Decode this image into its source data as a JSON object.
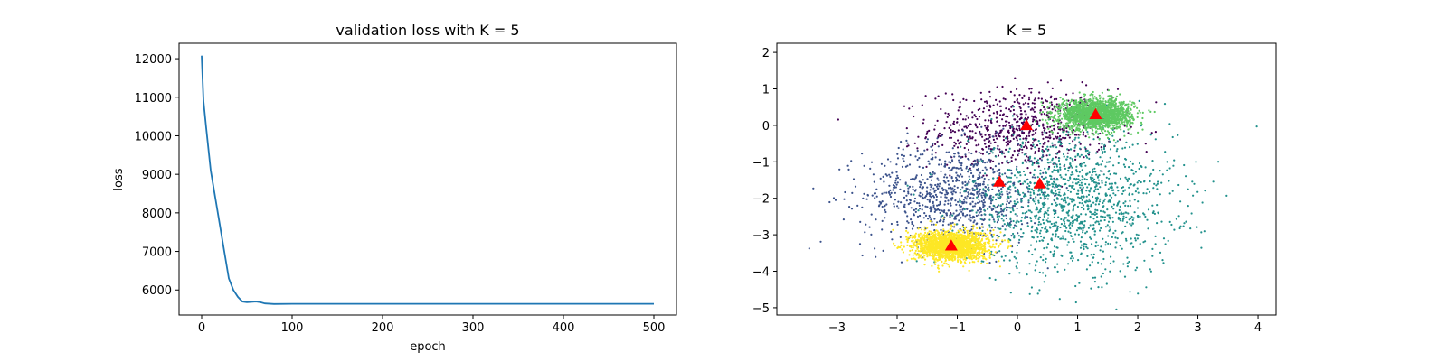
{
  "chart_data": [
    {
      "type": "line",
      "title": "validation loss with K = 5",
      "xlabel": "epoch",
      "ylabel": "loss",
      "xlim": [
        -25,
        525
      ],
      "ylim": [
        5350,
        12400
      ],
      "xticks": [
        0,
        100,
        200,
        300,
        400,
        500
      ],
      "yticks": [
        6000,
        7000,
        8000,
        9000,
        10000,
        11000,
        12000
      ],
      "grid": false,
      "series": [
        {
          "color": "#1f77b4",
          "x": [
            0,
            2,
            5,
            10,
            15,
            20,
            25,
            30,
            35,
            40,
            45,
            50,
            55,
            60,
            65,
            70,
            80,
            100,
            150,
            200,
            250,
            300,
            350,
            400,
            450,
            500
          ],
          "y": [
            12080,
            10900,
            10200,
            9100,
            8400,
            7700,
            7000,
            6300,
            6000,
            5820,
            5700,
            5680,
            5690,
            5700,
            5680,
            5650,
            5635,
            5640,
            5640,
            5640,
            5640,
            5640,
            5640,
            5640,
            5640,
            5640
          ]
        }
      ]
    },
    {
      "type": "scatter",
      "title": "K = 5",
      "xlabel": "",
      "ylabel": "",
      "xlim": [
        -4.0,
        4.3
      ],
      "ylim": [
        -5.2,
        2.25
      ],
      "xticks": [
        -3,
        -2,
        -1,
        0,
        1,
        2,
        3,
        4
      ],
      "yticks": [
        -5,
        -4,
        -3,
        -2,
        -1,
        0,
        1,
        2
      ],
      "grid": false,
      "clusters": [
        {
          "color": "#440154",
          "center": [
            0.05,
            -0.1
          ],
          "spread": [
            0.75,
            0.55
          ],
          "count": 700
        },
        {
          "color": "#3b528b",
          "center": [
            -1.05,
            -1.9
          ],
          "spread": [
            0.75,
            0.7
          ],
          "count": 900
        },
        {
          "color": "#21918c",
          "center": [
            0.9,
            -2.1
          ],
          "spread": [
            0.85,
            0.95
          ],
          "count": 1300
        },
        {
          "color": "#5ec962",
          "center": [
            1.3,
            0.3
          ],
          "spread": [
            0.3,
            0.2
          ],
          "count": 1800
        },
        {
          "color": "#fde725",
          "center": [
            -1.1,
            -3.3
          ],
          "spread": [
            0.3,
            0.2
          ],
          "count": 1800
        }
      ],
      "centroids": {
        "color": "#ff0000",
        "marker": "triangle",
        "x": [
          0.15,
          -0.3,
          0.37,
          1.3,
          -1.1
        ],
        "y": [
          0.0,
          -1.55,
          -1.6,
          0.3,
          -3.3
        ]
      }
    }
  ]
}
